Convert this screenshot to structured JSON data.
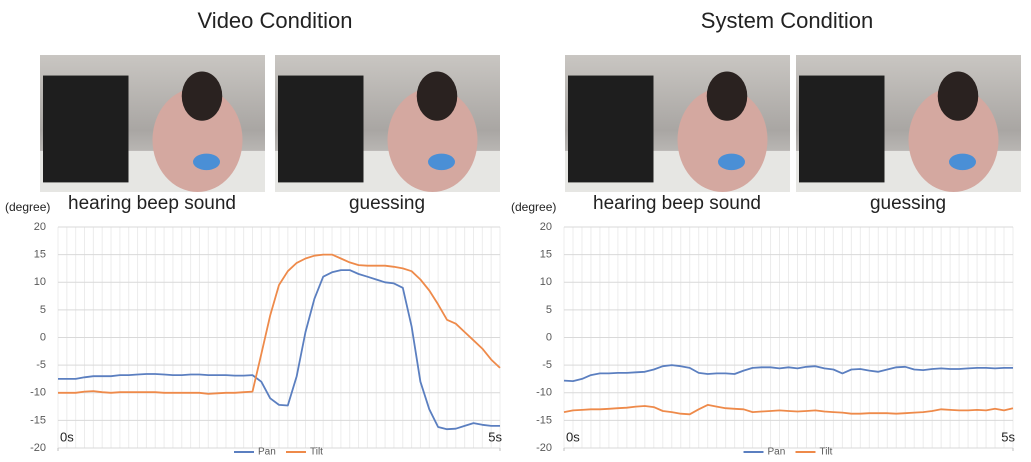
{
  "chart_data": [
    {
      "type": "line",
      "title": "Video Condition",
      "annotations": [
        "hearing beep sound",
        "guessing"
      ],
      "y_label": "(degree)",
      "x": [
        0,
        0.1,
        0.2,
        0.3,
        0.4,
        0.5,
        0.6,
        0.7,
        0.8,
        0.9,
        1,
        1.1,
        1.2,
        1.3,
        1.4,
        1.5,
        1.6,
        1.7,
        1.8,
        1.9,
        2,
        2.1,
        2.2,
        2.3,
        2.4,
        2.5,
        2.6,
        2.7,
        2.8,
        2.9,
        3,
        3.1,
        3.2,
        3.3,
        3.4,
        3.5,
        3.6,
        3.7,
        3.8,
        3.9,
        4,
        4.1,
        4.2,
        4.3,
        4.4,
        4.5,
        4.6,
        4.7,
        4.8,
        4.9,
        5
      ],
      "series": [
        {
          "name": "Pan",
          "color": "#5b7fc0",
          "values": [
            -7.5,
            -7.5,
            -7.5,
            -7.2,
            -7,
            -7,
            -7,
            -6.8,
            -6.8,
            -6.7,
            -6.6,
            -6.6,
            -6.7,
            -6.8,
            -6.8,
            -6.7,
            -6.7,
            -6.8,
            -6.8,
            -6.8,
            -6.9,
            -6.9,
            -6.8,
            -8,
            -11,
            -12.2,
            -12.3,
            -7,
            1,
            7,
            11,
            11.8,
            12.2,
            12.2,
            11.5,
            11,
            10.5,
            10,
            9.8,
            9,
            2,
            -8,
            -13,
            -16.2,
            -16.6,
            -16.5,
            -16,
            -15.5,
            -15.8,
            -16,
            -16
          ]
        },
        {
          "name": "Tilt",
          "color": "#ee8a4a",
          "values": [
            -10,
            -10,
            -10,
            -9.8,
            -9.7,
            -9.9,
            -10,
            -9.9,
            -9.9,
            -9.9,
            -9.9,
            -9.9,
            -10,
            -10,
            -10,
            -10,
            -10,
            -10.2,
            -10.1,
            -10,
            -10,
            -9.9,
            -9.8,
            -3,
            4,
            9.5,
            12,
            13.5,
            14.3,
            14.8,
            15,
            15,
            14.3,
            13.6,
            13.1,
            13,
            13,
            13,
            12.8,
            12.5,
            12,
            10.5,
            8.5,
            6,
            3.2,
            2.5,
            1,
            -0.5,
            -2,
            -4,
            -5.5
          ]
        }
      ],
      "xlim": [
        0,
        5
      ],
      "xticks": [
        {
          "value": 0,
          "label": "0s"
        },
        {
          "value": 5,
          "label": "5s"
        }
      ],
      "ylim": [
        -20,
        20
      ],
      "yticks": [
        -20,
        -15,
        -10,
        -5,
        0,
        5,
        10,
        15,
        20
      ],
      "grid": true,
      "legend": "bottom"
    },
    {
      "type": "line",
      "title": "System Condition",
      "annotations": [
        "hearing beep sound",
        "guessing"
      ],
      "y_label": "(degree)",
      "x": [
        0,
        0.1,
        0.2,
        0.3,
        0.4,
        0.5,
        0.6,
        0.7,
        0.8,
        0.9,
        1,
        1.1,
        1.2,
        1.3,
        1.4,
        1.5,
        1.6,
        1.7,
        1.8,
        1.9,
        2,
        2.1,
        2.2,
        2.3,
        2.4,
        2.5,
        2.6,
        2.7,
        2.8,
        2.9,
        3,
        3.1,
        3.2,
        3.3,
        3.4,
        3.5,
        3.6,
        3.7,
        3.8,
        3.9,
        4,
        4.1,
        4.2,
        4.3,
        4.4,
        4.5,
        4.6,
        4.7,
        4.8,
        4.9,
        5
      ],
      "series": [
        {
          "name": "Pan",
          "color": "#5b7fc0",
          "values": [
            -7.8,
            -7.9,
            -7.5,
            -6.8,
            -6.5,
            -6.5,
            -6.4,
            -6.4,
            -6.3,
            -6.2,
            -5.8,
            -5.2,
            -5,
            -5.2,
            -5.5,
            -6.4,
            -6.6,
            -6.5,
            -6.5,
            -6.6,
            -6,
            -5.5,
            -5.4,
            -5.4,
            -5.6,
            -5.4,
            -5.6,
            -5.3,
            -5.2,
            -5.6,
            -5.8,
            -6.5,
            -5.8,
            -5.7,
            -6,
            -6.2,
            -5.8,
            -5.4,
            -5.3,
            -5.8,
            -5.9,
            -5.7,
            -5.6,
            -5.7,
            -5.7,
            -5.6,
            -5.5,
            -5.5,
            -5.6,
            -5.5,
            -5.5
          ]
        },
        {
          "name": "Tilt",
          "color": "#ee8a4a",
          "values": [
            -13.5,
            -13.2,
            -13.1,
            -13,
            -13,
            -12.9,
            -12.8,
            -12.7,
            -12.5,
            -12.4,
            -12.6,
            -13.3,
            -13.5,
            -13.8,
            -13.9,
            -13,
            -12.2,
            -12.5,
            -12.8,
            -12.9,
            -13,
            -13.5,
            -13.4,
            -13.3,
            -13.2,
            -13.3,
            -13.4,
            -13.3,
            -13.2,
            -13.4,
            -13.5,
            -13.6,
            -13.8,
            -13.8,
            -13.7,
            -13.7,
            -13.7,
            -13.8,
            -13.7,
            -13.6,
            -13.5,
            -13.3,
            -13,
            -13.1,
            -13.2,
            -13.2,
            -13.1,
            -13.2,
            -12.9,
            -13.2,
            -12.8
          ]
        }
      ],
      "xlim": [
        0,
        5
      ],
      "xticks": [
        {
          "value": 0,
          "label": "0s"
        },
        {
          "value": 5,
          "label": "5s"
        }
      ],
      "ylim": [
        -20,
        20
      ],
      "yticks": [
        -20,
        -15,
        -10,
        -5,
        0,
        5,
        10,
        15,
        20
      ],
      "grid": true,
      "legend": "bottom"
    }
  ]
}
